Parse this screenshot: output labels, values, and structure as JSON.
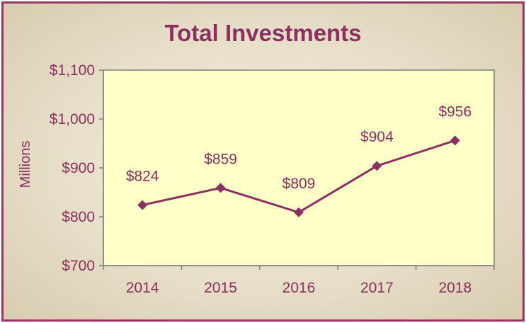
{
  "chart_data": {
    "type": "line",
    "title": "Total Investments",
    "ylabel": "Millions",
    "xlabel": "",
    "categories": [
      "2014",
      "2015",
      "2016",
      "2017",
      "2018"
    ],
    "series": [
      {
        "values": [
          824,
          859,
          809,
          904,
          956
        ]
      }
    ],
    "data_labels": [
      "$824",
      "$859",
      "$809",
      "$904",
      "$956"
    ],
    "y_ticks": [
      700,
      800,
      900,
      1000,
      1100
    ],
    "y_tick_labels": [
      "$700",
      "$800",
      "$900",
      "$1,000",
      "$1,100"
    ],
    "ylim": [
      700,
      1100
    ],
    "grid": false,
    "legend": "none",
    "colors": {
      "line": "#8d2f60",
      "text": "#8d2f60",
      "plot_bg": "#ffffc8",
      "frame": "#9c3567",
      "axis": "#808080"
    }
  }
}
